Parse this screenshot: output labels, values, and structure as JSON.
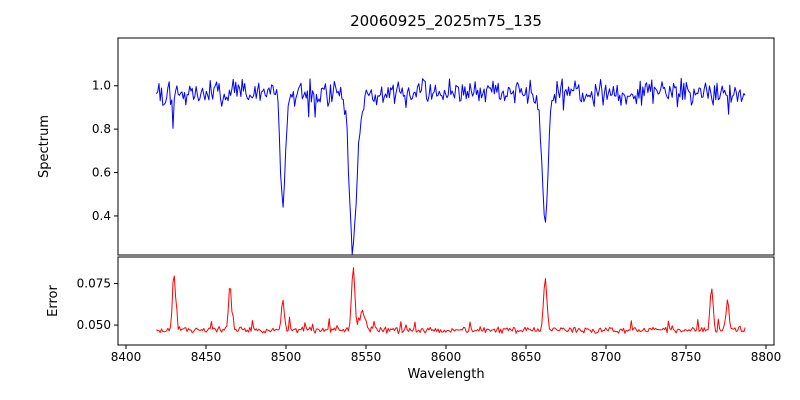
{
  "figure": {
    "title": "20060925_2025m75_135",
    "background": "#ffffff"
  },
  "x_axis": {
    "label": "Wavelength",
    "lim": [
      8395,
      8805
    ],
    "ticks": [
      8400,
      8450,
      8500,
      8550,
      8600,
      8650,
      8700,
      8750,
      8800
    ],
    "tick_labels": [
      "8400",
      "8450",
      "8500",
      "8550",
      "8600",
      "8650",
      "8700",
      "8750",
      "8800"
    ]
  },
  "chart_data": [
    {
      "type": "line",
      "name": "spectrum",
      "ylabel": "Spectrum",
      "color": "#0000ff",
      "ylim": [
        0.22,
        1.22
      ],
      "yticks": [
        0.4,
        0.6,
        0.8,
        1.0
      ],
      "ytick_labels": [
        "0.4",
        "0.6",
        "0.8",
        "1.0"
      ],
      "x_start": 8419,
      "x_end": 8787,
      "x_step": 0.8,
      "baseline": 0.97,
      "noise_amplitude": 0.052,
      "spike_prob": 0.05,
      "spike_scale": 0.12,
      "spike_sign": -1,
      "features": [
        {
          "center": 8498.0,
          "depth": 0.52,
          "width": 1.6
        },
        {
          "center": 8542.0,
          "depth": 0.68,
          "width": 2.4
        },
        {
          "center": 8662.0,
          "depth": 0.6,
          "width": 1.9
        }
      ]
    },
    {
      "type": "line",
      "name": "error",
      "ylabel": "Error",
      "color": "#ff0000",
      "ylim": [
        0.038,
        0.091
      ],
      "yticks": [
        0.05,
        0.075
      ],
      "ytick_labels": [
        "0.050",
        "0.075"
      ],
      "x_start": 8419,
      "x_end": 8787,
      "x_step": 0.8,
      "baseline": 0.047,
      "noise_amplitude": 0.0016,
      "spike_prob": 0.06,
      "spike_scale": 0.008,
      "spike_sign": 1,
      "features": [
        {
          "center": 8430.0,
          "depth": -0.035,
          "width": 0.9
        },
        {
          "center": 8465.0,
          "depth": -0.027,
          "width": 0.9
        },
        {
          "center": 8498.0,
          "depth": -0.017,
          "width": 1.0
        },
        {
          "center": 8542.0,
          "depth": -0.038,
          "width": 1.0
        },
        {
          "center": 8548.0,
          "depth": -0.011,
          "width": 1.6
        },
        {
          "center": 8662.0,
          "depth": -0.03,
          "width": 1.1
        },
        {
          "center": 8766.0,
          "depth": -0.026,
          "width": 0.9
        },
        {
          "center": 8776.0,
          "depth": -0.018,
          "width": 0.9
        }
      ]
    }
  ]
}
